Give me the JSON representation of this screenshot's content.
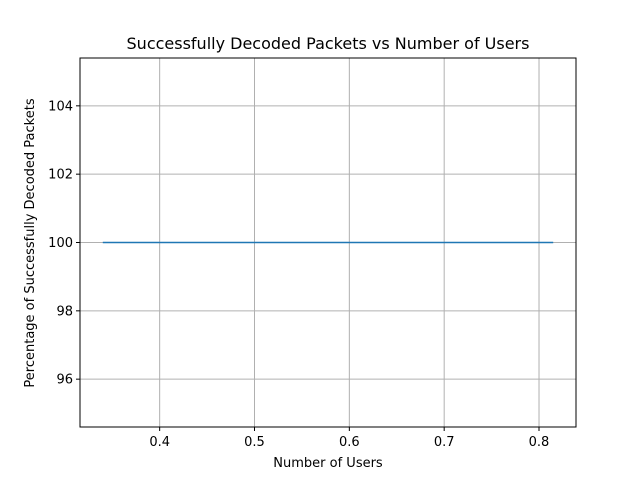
{
  "chart_data": {
    "type": "line",
    "title": "Successfully Decoded Packets vs Number of Users",
    "xlabel": "Number of Users",
    "ylabel": "Percentage of Successfully Decoded Packets",
    "xlim": [
      0.316,
      0.839
    ],
    "ylim": [
      94.6,
      105.4
    ],
    "xticks": [
      0.4,
      0.5,
      0.6,
      0.7,
      0.8
    ],
    "xtick_labels": [
      "0.4",
      "0.5",
      "0.6",
      "0.7",
      "0.8"
    ],
    "yticks": [
      96,
      98,
      100,
      102,
      104
    ],
    "ytick_labels": [
      "96",
      "98",
      "100",
      "102",
      "104"
    ],
    "grid": true,
    "series": [
      {
        "color": "#1f77b4",
        "x": [
          0.34,
          0.815
        ],
        "y": [
          100,
          100
        ]
      }
    ]
  }
}
